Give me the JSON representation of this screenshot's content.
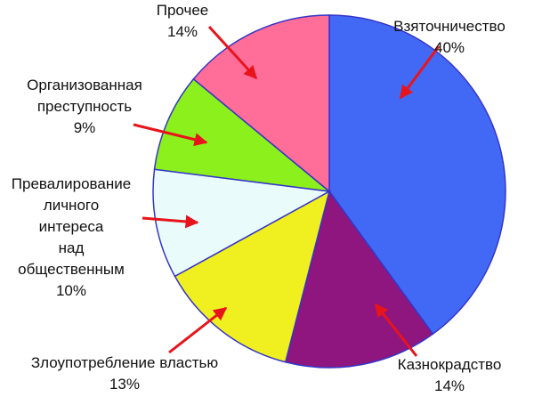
{
  "chart_data": {
    "type": "pie",
    "categories": [
      "Взяточничество",
      "Казнокрадство",
      "Злоупотребление властью",
      "Превалирование\nличного\nинтереса\nнад\nобщественным",
      "Организованная\nпреступность",
      "Прочее"
    ],
    "values": [
      40,
      14,
      13,
      10,
      9,
      14
    ],
    "value_labels": [
      "40%",
      "14%",
      "13%",
      "10%",
      "9%",
      "14%"
    ],
    "colors": [
      "#4169f5",
      "#8e167e",
      "#f0f020",
      "#eafbfb",
      "#8cf01c",
      "#ff6d99"
    ]
  }
}
